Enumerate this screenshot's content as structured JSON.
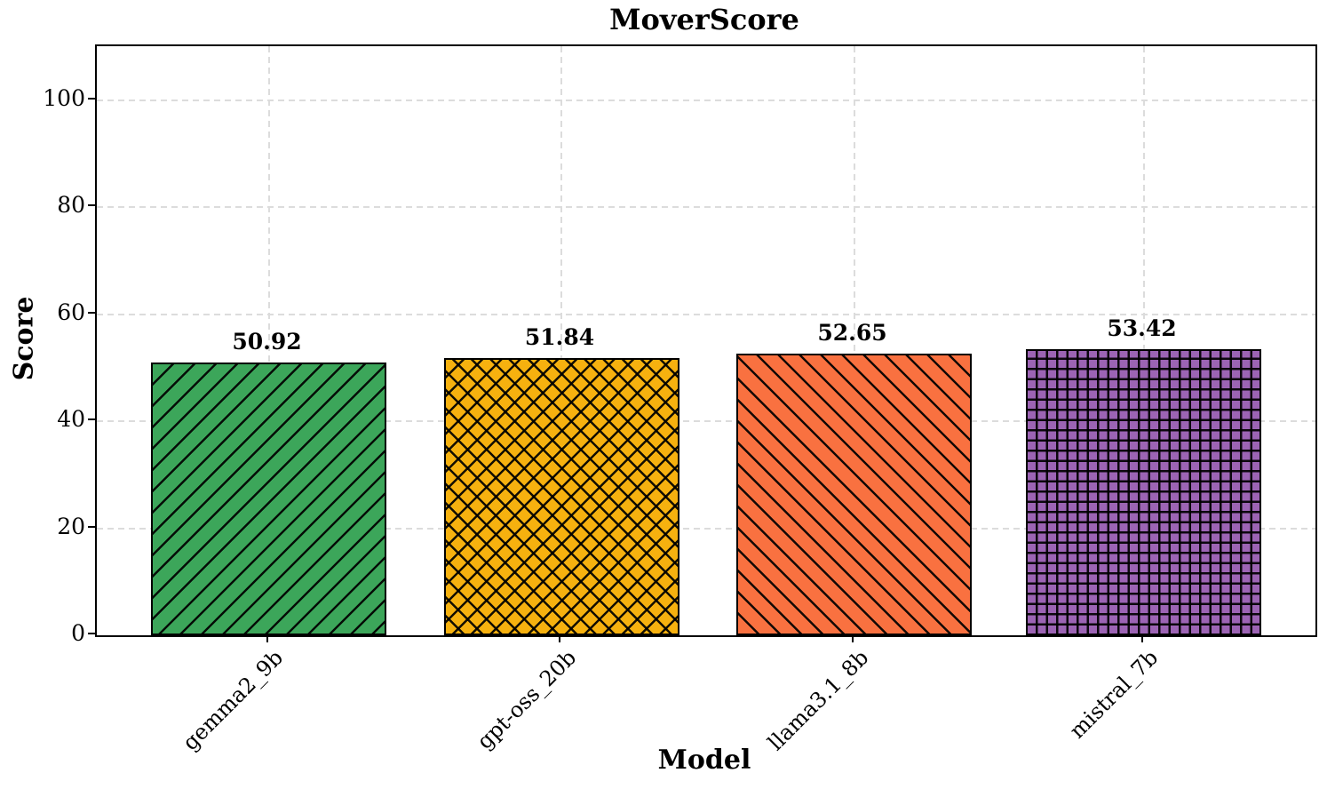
{
  "chart_data": {
    "type": "bar",
    "title": "MoverScore",
    "xlabel": "Model",
    "ylabel": "Score",
    "categories": [
      "gemma2_9b",
      "gpt-oss_20b",
      "llama3.1_8b",
      "mistral_7b"
    ],
    "values": [
      50.92,
      51.84,
      52.65,
      53.42
    ],
    "value_labels": [
      "50.92",
      "51.84",
      "52.65",
      "53.42"
    ],
    "bar_colors": [
      "#3CA65A",
      "#F6B10F",
      "#F97140",
      "#9C64B4"
    ],
    "bar_hatches": [
      "/",
      "x",
      "\\",
      "+"
    ],
    "bar_edge_color": "#000000",
    "yticks": [
      0,
      20,
      40,
      60,
      80,
      100
    ],
    "ylim": [
      0,
      110
    ],
    "grid": {
      "visible": true,
      "style": "dashed",
      "color": "#dcdcdc",
      "axes": "both"
    },
    "legend": null,
    "background": "#ffffff",
    "text_color": "#000000"
  }
}
